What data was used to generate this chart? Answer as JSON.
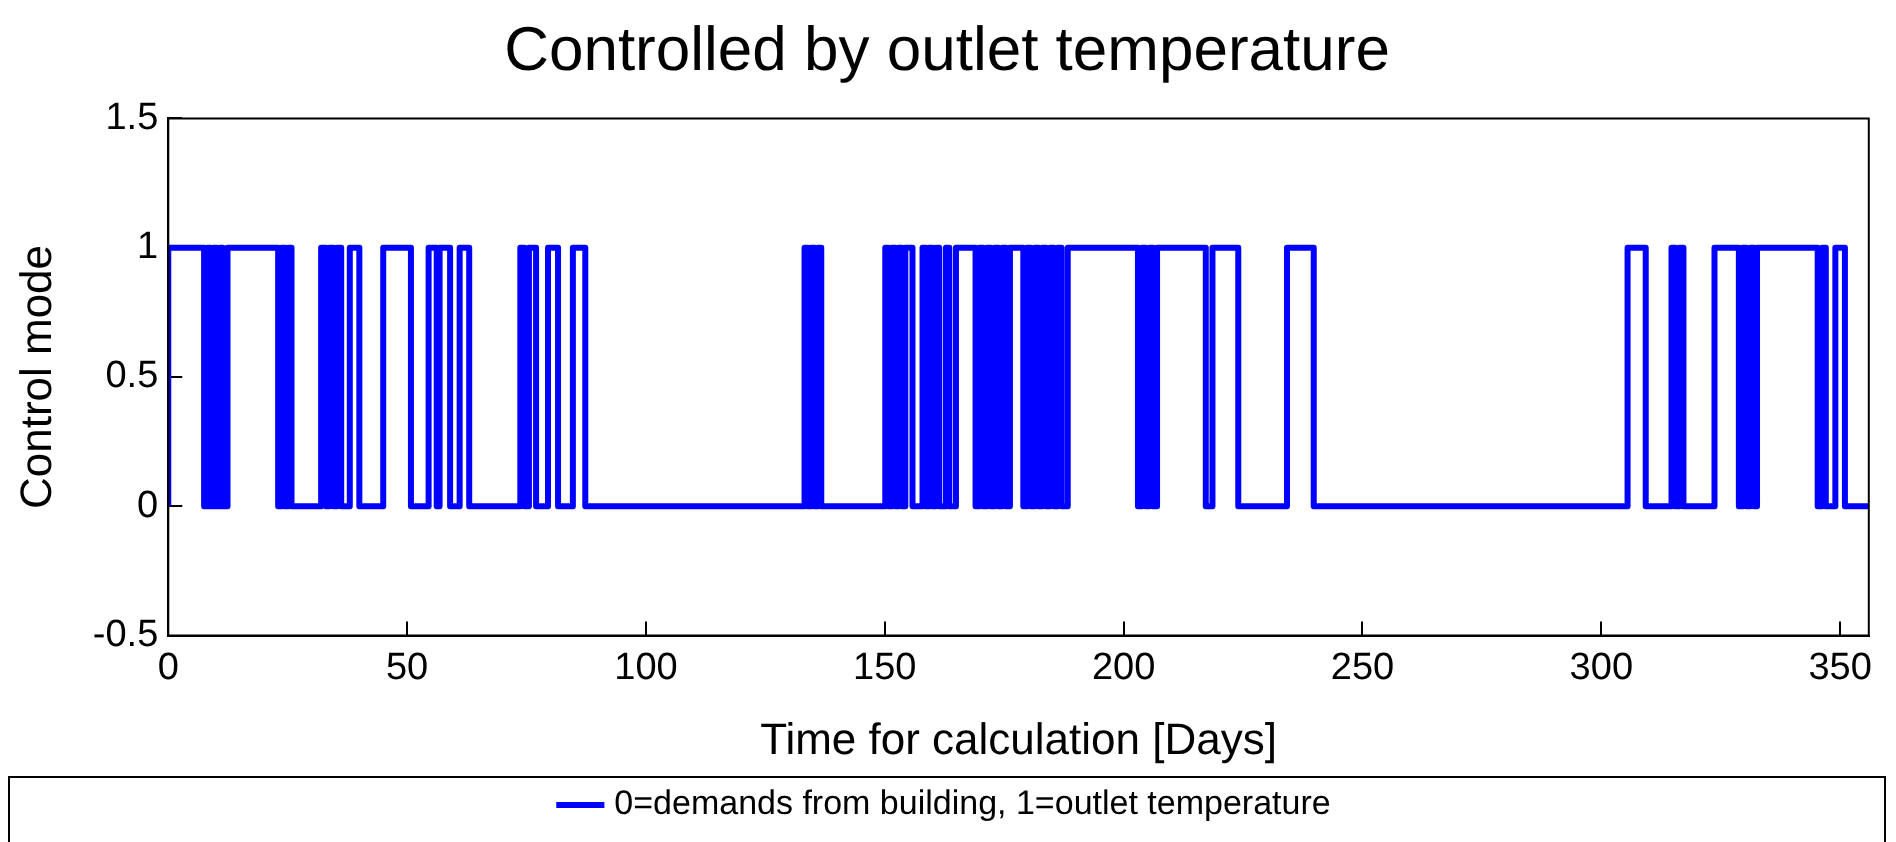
{
  "chart_data": {
    "type": "step",
    "title": "Controlled by outlet temperature",
    "xlabel": "Time for calculation [Days]",
    "ylabel": "Control mode",
    "x": [
      0,
      7.5,
      8.2,
      8.8,
      9.5,
      10.1,
      10.8,
      11.4,
      12.4,
      23,
      23.7,
      24.4,
      25.1,
      25.8,
      32,
      33,
      33.7,
      34.6,
      35.3,
      36.2,
      38,
      40,
      45,
      50.8,
      54.5,
      56.2,
      56.8,
      59,
      61,
      63,
      73.7,
      74.6,
      75.5,
      77,
      79.5,
      81.6,
      84.7,
      87.3,
      133.2,
      133.9,
      134.6,
      135.3,
      136,
      136.7,
      150.1,
      150.8,
      151.5,
      152.2,
      152.9,
      153.6,
      154.3,
      155.8,
      157.9,
      158.6,
      159.3,
      160,
      160.7,
      161.4,
      162.8,
      163.5,
      164.9,
      169,
      169.8,
      170.6,
      171.4,
      172.2,
      173,
      173.8,
      174.6,
      175.4,
      176.2,
      179,
      179.8,
      180.6,
      181.4,
      182.2,
      183,
      183.8,
      184.6,
      185.4,
      186.2,
      187,
      188.3,
      203,
      203.8,
      204.6,
      205.4,
      206.2,
      207,
      217.2,
      218.6,
      224,
      234.2,
      239.8,
      305.5,
      309.3,
      314.7,
      315.5,
      316.3,
      317.2,
      323.7,
      328.8,
      329.6,
      330.4,
      331.2,
      332,
      332.6,
      345.3,
      346.2,
      347,
      349,
      351,
      353.4,
      356
    ],
    "series": [
      {
        "name": "0=demands from building, 1=outlet temperature",
        "color": "#0000ff",
        "values": [
          0,
          1,
          0,
          1,
          0,
          1,
          0,
          1,
          0,
          1,
          0,
          1,
          0,
          1,
          0,
          1,
          0,
          1,
          0,
          1,
          0,
          1,
          0,
          1,
          0,
          1,
          0,
          1,
          0,
          1,
          0,
          1,
          0,
          1,
          0,
          1,
          0,
          1,
          0,
          1,
          0,
          1,
          0,
          1,
          0,
          1,
          0,
          1,
          0,
          1,
          0,
          1,
          0,
          1,
          0,
          1,
          0,
          1,
          0,
          1,
          0,
          1,
          0,
          1,
          0,
          1,
          0,
          1,
          0,
          1,
          0,
          1,
          0,
          1,
          0,
          1,
          0,
          1,
          0,
          1,
          0,
          1,
          0,
          1,
          0,
          1,
          0,
          1,
          0,
          1,
          0,
          1,
          0,
          1,
          0,
          1,
          0,
          1,
          0,
          1,
          0,
          1,
          0,
          1,
          0,
          1,
          0,
          1,
          0,
          1,
          0,
          1,
          0,
          0
        ]
      }
    ],
    "xlim": [
      0,
      356
    ],
    "xticks": [
      0,
      50,
      100,
      150,
      200,
      250,
      300,
      350
    ],
    "ylim": [
      -0.5,
      1.5
    ],
    "yticks": [
      -0.5,
      0,
      0.5,
      1,
      1.5
    ],
    "grid": false,
    "legend": "bottom"
  }
}
